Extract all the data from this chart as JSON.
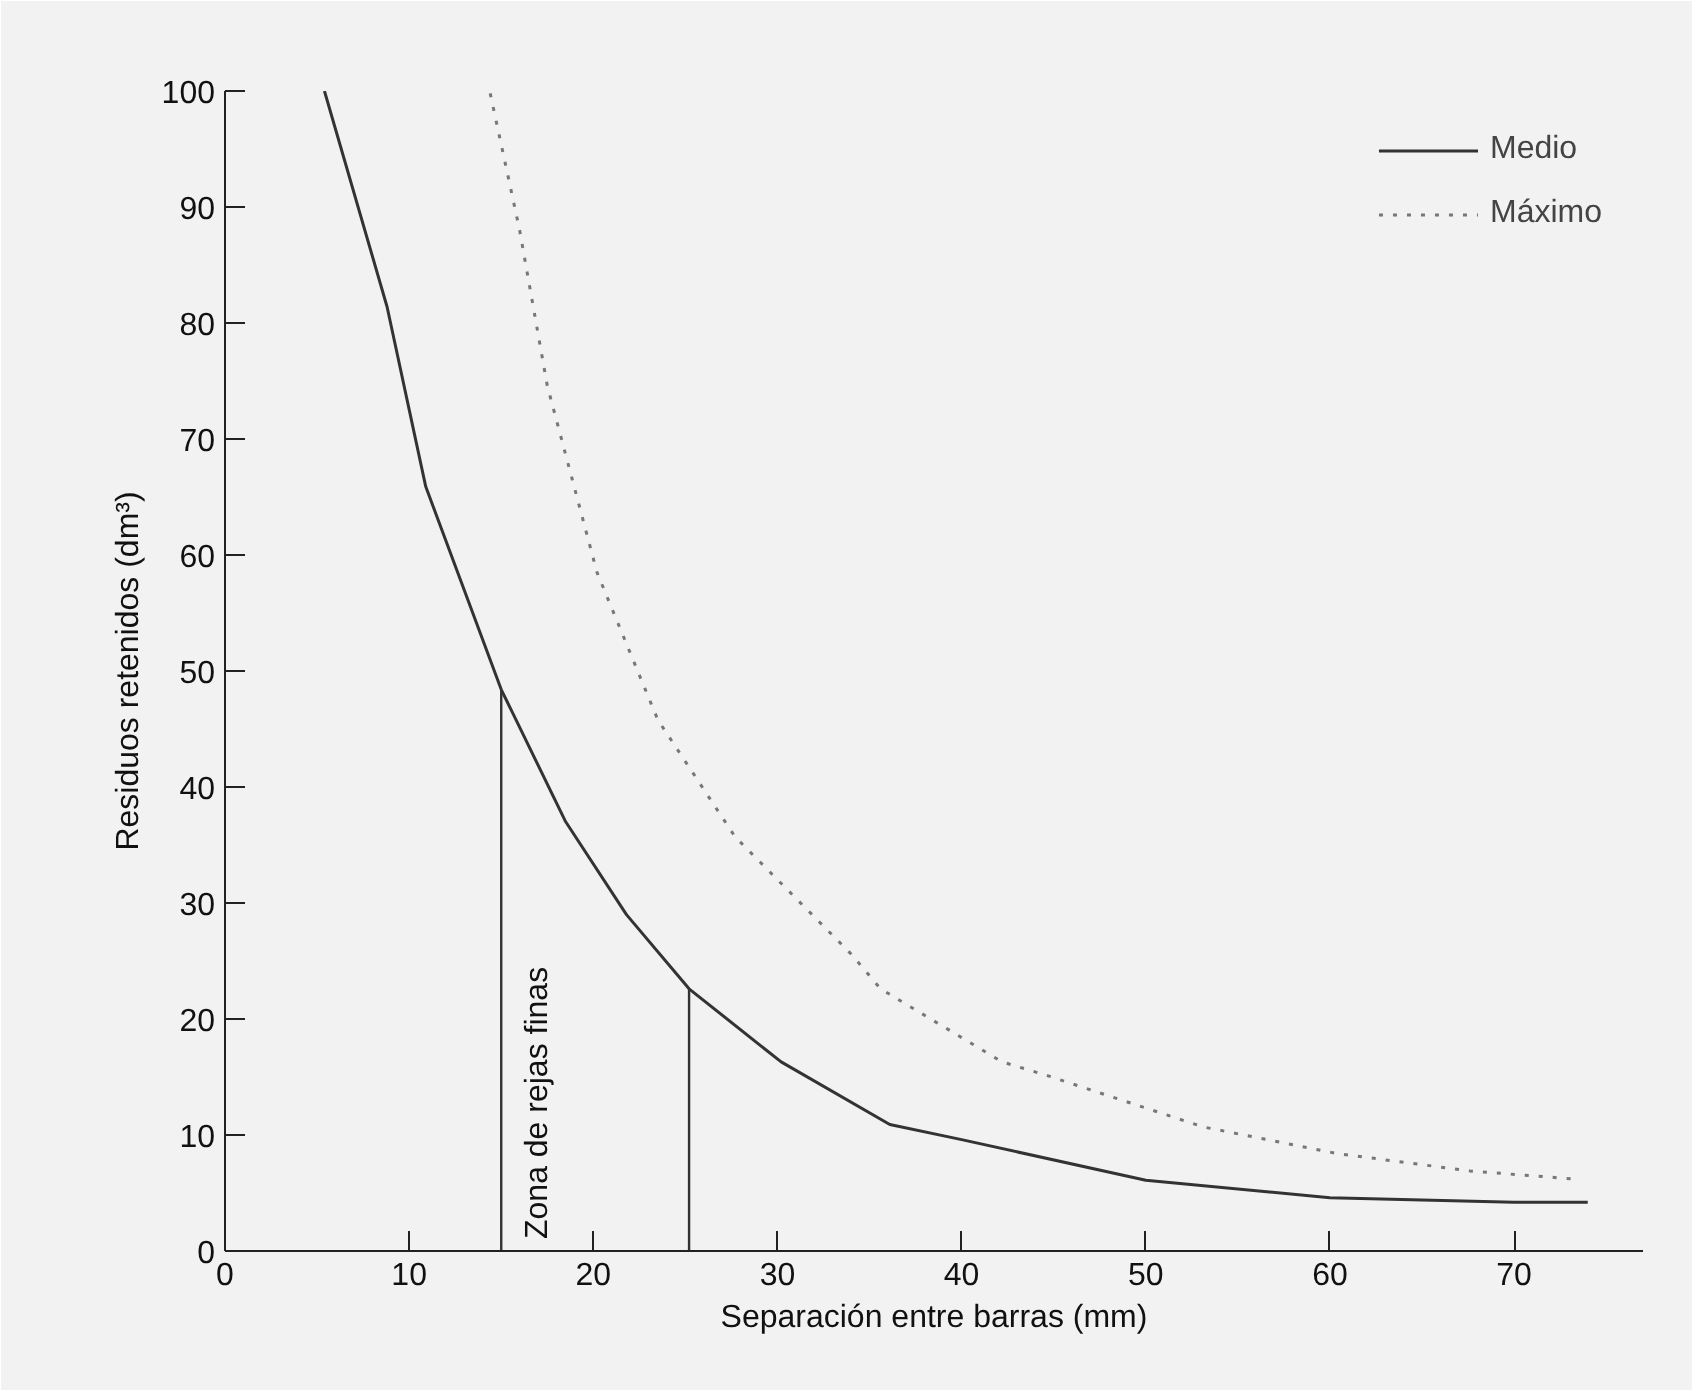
{
  "chart_data": {
    "type": "line",
    "xlabel": "Separación entre barras (mm)",
    "ylabel": "Residuos retenidos (dm³)",
    "xlim": [
      0,
      77
    ],
    "ylim": [
      0,
      100
    ],
    "xticks": [
      0,
      10,
      20,
      30,
      40,
      50,
      60,
      70
    ],
    "yticks": [
      0,
      10,
      20,
      30,
      40,
      50,
      60,
      70,
      80,
      90,
      100
    ],
    "grid": false,
    "legend": "top right",
    "series": [
      {
        "name": "Medio",
        "color": "#333333",
        "line_style": "solid",
        "x": [
          5.4,
          8.8,
          10.9,
          15.0,
          18.5,
          21.8,
          25.2,
          30.2,
          36.1,
          40,
          50,
          60,
          70,
          74
        ],
        "values": [
          100,
          81.4,
          65.9,
          48.4,
          37,
          29,
          22.6,
          16.3,
          10.9,
          9.6,
          6.1,
          4.6,
          4.2,
          4.2
        ]
      },
      {
        "name": "Máximo",
        "color": "#777777",
        "line_style": "dotted",
        "x": [
          14.4,
          16.0,
          17.5,
          20.2,
          23.5,
          27.7,
          34.0,
          35.6,
          42.2,
          44.7,
          53.1,
          60.4,
          67.6,
          73.3
        ],
        "values": [
          99.8,
          88,
          74.6,
          58.5,
          45.8,
          35.7,
          25.6,
          22.6,
          16.3,
          15.1,
          10.7,
          8.4,
          6.9,
          6.2
        ]
      }
    ],
    "ref_lines": [
      {
        "axis": "x",
        "value": 15,
        "label": "Zona de rejas finas",
        "color": "#333333"
      },
      {
        "axis": "x",
        "value": 25.2,
        "color": "#333333"
      }
    ]
  }
}
